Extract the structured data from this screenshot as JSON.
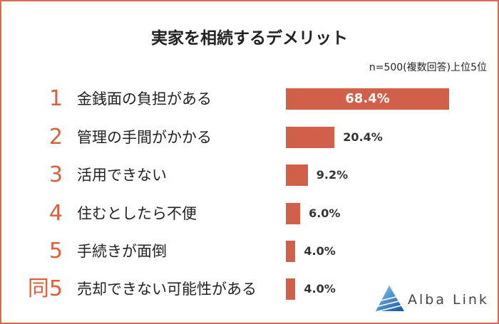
{
  "colors": {
    "border": "#d96b50",
    "bar": "#d0604a",
    "rank": "#d9603d",
    "text": "#222222"
  },
  "logo": {
    "icon": "alba-link-logo-icon",
    "text": "Alba Link"
  },
  "chart_data": {
    "type": "bar",
    "orientation": "horizontal",
    "title": "実家を相続するデメリット",
    "subtitle": "n=500(複数回答)上位5位",
    "ranks": [
      "1",
      "2",
      "3",
      "4",
      "5",
      "同5"
    ],
    "categories": [
      "金銭面の負担がある",
      "管理の手間がかかる",
      "活用できない",
      "住むとしたら不便",
      "手続きが面倒",
      "売却できない可能性がある"
    ],
    "values": [
      68.4,
      20.4,
      9.2,
      6.0,
      4.0,
      4.0
    ],
    "value_labels": [
      "68.4%",
      "20.4%",
      "9.2%",
      "6.0%",
      "4.0%",
      "4.0%"
    ],
    "grid": false,
    "legend": false
  }
}
